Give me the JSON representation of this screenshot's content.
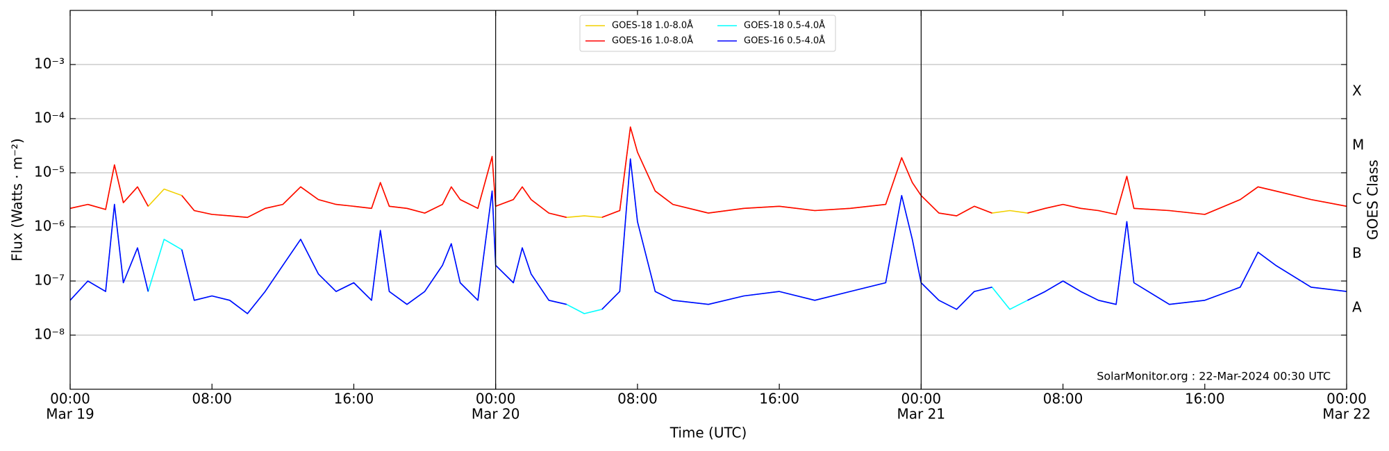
{
  "chart_data": {
    "type": "line",
    "xlabel": "Time (UTC)",
    "ylabel": "Flux (Watts · m⁻²)",
    "y2label": "GOES Class",
    "annotation": "SolarMonitor.org : 22-Mar-2024 00:30 UTC",
    "log_y": true,
    "grid": true,
    "legend": "upper center",
    "xlim": [
      0,
      72
    ],
    "xticks": [
      {
        "value": 0,
        "label": "00:00",
        "sublabel": "Mar 19"
      },
      {
        "value": 8,
        "label": "08:00"
      },
      {
        "value": 16,
        "label": "16:00"
      },
      {
        "value": 24,
        "label": "00:00",
        "sublabel": "Mar 20"
      },
      {
        "value": 32,
        "label": "08:00"
      },
      {
        "value": 40,
        "label": "16:00"
      },
      {
        "value": 48,
        "label": "00:00",
        "sublabel": "Mar 21"
      },
      {
        "value": 56,
        "label": "08:00"
      },
      {
        "value": 64,
        "label": "16:00"
      },
      {
        "value": 72,
        "label": "00:00",
        "sublabel": "Mar 22"
      }
    ],
    "vlines": [
      24,
      48
    ],
    "ylim": [
      1e-09,
      0.01
    ],
    "yticks": [
      {
        "value": 1e-08,
        "label": "10⁻⁸"
      },
      {
        "value": 1e-07,
        "label": "10⁻⁷"
      },
      {
        "value": 1e-06,
        "label": "10⁻⁶"
      },
      {
        "value": 1e-05,
        "label": "10⁻⁵"
      },
      {
        "value": 0.0001,
        "label": "10⁻⁴"
      },
      {
        "value": 0.001,
        "label": "10⁻³"
      }
    ],
    "y2lim": [
      1e-09,
      0.01
    ],
    "y2ticks": [
      {
        "value": 3.16e-08,
        "label": "A"
      },
      {
        "value": 3.16e-07,
        "label": "B"
      },
      {
        "value": 3.16e-06,
        "label": "C"
      },
      {
        "value": 3.16e-05,
        "label": "M"
      },
      {
        "value": 0.000316,
        "label": "X"
      }
    ],
    "x": [
      0,
      1,
      2,
      2.5,
      3,
      3.8,
      4.4,
      5.3,
      6.3,
      7,
      8,
      9,
      10,
      11,
      12,
      13,
      14,
      15,
      16,
      17,
      17.5,
      18,
      19,
      20,
      21,
      21.5,
      22,
      23,
      23.8,
      24,
      25,
      25.5,
      26,
      27,
      28,
      29,
      30,
      31,
      31.6,
      32,
      33,
      34,
      36,
      38,
      40,
      42,
      44,
      46,
      46.9,
      47.5,
      48,
      49,
      50,
      51,
      52,
      53,
      54,
      55,
      56,
      57,
      58,
      59,
      59.6,
      60,
      62,
      64,
      66,
      67,
      68,
      70,
      72
    ],
    "series": [
      {
        "name": "GOES-18 1.0-8.0Å",
        "color": "#f2d000",
        "values": [
          2.2e-06,
          2.6e-06,
          2.1e-06,
          1.4e-05,
          2.8e-06,
          5.5e-06,
          2.4e-06,
          5e-06,
          3.8e-06,
          2e-06,
          1.7e-06,
          1.6e-06,
          1.5e-06,
          2.2e-06,
          2.6e-06,
          5.5e-06,
          3.2e-06,
          2.6e-06,
          2.4e-06,
          2.2e-06,
          6.6e-06,
          2.4e-06,
          2.2e-06,
          1.8e-06,
          2.6e-06,
          5.5e-06,
          3.2e-06,
          2.2e-06,
          2e-05,
          2.4e-06,
          3.2e-06,
          5.5e-06,
          3.2e-06,
          1.8e-06,
          1.5e-06,
          1.6e-06,
          1.5e-06,
          2e-06,
          7e-05,
          2.4e-05,
          4.6e-06,
          2.6e-06,
          1.8e-06,
          2.2e-06,
          2.4e-06,
          2e-06,
          2.2e-06,
          2.6e-06,
          1.9e-05,
          6.6e-06,
          3.8e-06,
          1.8e-06,
          1.6e-06,
          2.4e-06,
          1.8e-06,
          2e-06,
          1.8e-06,
          2.2e-06,
          2.6e-06,
          2.2e-06,
          2e-06,
          1.7e-06,
          8.6e-06,
          2.2e-06,
          2e-06,
          1.7e-06,
          3.2e-06,
          5.5e-06,
          4.6e-06,
          3.2e-06,
          2.4e-06
        ]
      },
      {
        "name": "GOES-16 1.0-8.0Å",
        "color": "#ff0000",
        "values": [
          2.2e-06,
          2.6e-06,
          2.1e-06,
          1.4e-05,
          2.8e-06,
          5.5e-06,
          2.4e-06,
          null,
          3.8e-06,
          2e-06,
          1.7e-06,
          1.6e-06,
          1.5e-06,
          2.2e-06,
          2.6e-06,
          5.5e-06,
          3.2e-06,
          2.6e-06,
          2.4e-06,
          2.2e-06,
          6.6e-06,
          2.4e-06,
          2.2e-06,
          1.8e-06,
          2.6e-06,
          5.5e-06,
          3.2e-06,
          2.2e-06,
          2e-05,
          2.4e-06,
          3.2e-06,
          5.5e-06,
          3.2e-06,
          1.8e-06,
          1.5e-06,
          null,
          1.5e-06,
          2e-06,
          7e-05,
          2.4e-05,
          4.6e-06,
          2.6e-06,
          1.8e-06,
          2.2e-06,
          2.4e-06,
          2e-06,
          2.2e-06,
          2.6e-06,
          1.9e-05,
          6.6e-06,
          3.8e-06,
          1.8e-06,
          1.6e-06,
          2.4e-06,
          1.8e-06,
          null,
          1.8e-06,
          2.2e-06,
          2.6e-06,
          2.2e-06,
          2e-06,
          1.7e-06,
          8.6e-06,
          2.2e-06,
          2e-06,
          1.7e-06,
          3.2e-06,
          5.5e-06,
          4.6e-06,
          3.2e-06,
          2.4e-06
        ]
      },
      {
        "name": "GOES-18 0.5-4.0Å",
        "color": "#00ffff",
        "values": [
          4.4e-08,
          1e-07,
          6.4e-08,
          2.6e-06,
          9.3e-08,
          4.1e-07,
          6.4e-08,
          5.9e-07,
          3.8e-07,
          4.4e-08,
          5.3e-08,
          4.4e-08,
          2.5e-08,
          6.4e-08,
          1.95e-07,
          5.9e-07,
          1.35e-07,
          6.4e-08,
          9.3e-08,
          4.4e-08,
          8.6e-07,
          6.4e-08,
          3.7e-08,
          6.4e-08,
          1.95e-07,
          4.9e-07,
          9.3e-08,
          4.4e-08,
          4.6e-06,
          1.95e-07,
          9.3e-08,
          4.1e-07,
          1.35e-07,
          4.4e-08,
          3.7e-08,
          2.5e-08,
          3e-08,
          6.4e-08,
          1.8e-05,
          1.25e-06,
          6.4e-08,
          4.4e-08,
          3.7e-08,
          5.3e-08,
          6.4e-08,
          4.4e-08,
          6.4e-08,
          9.3e-08,
          3.8e-06,
          5.9e-07,
          9.3e-08,
          4.4e-08,
          3e-08,
          6.4e-08,
          7.7e-08,
          3e-08,
          4.4e-08,
          6.4e-08,
          1e-07,
          6.4e-08,
          4.4e-08,
          3.7e-08,
          1.25e-06,
          9.3e-08,
          3.7e-08,
          4.4e-08,
          7.7e-08,
          3.4e-07,
          1.95e-07,
          7.7e-08,
          6.4e-08
        ]
      },
      {
        "name": "GOES-16 0.5-4.0Å",
        "color": "#0000ff",
        "values": [
          4.4e-08,
          1e-07,
          6.4e-08,
          2.6e-06,
          9.3e-08,
          4.1e-07,
          6.4e-08,
          null,
          3.8e-07,
          4.4e-08,
          5.3e-08,
          4.4e-08,
          2.5e-08,
          6.4e-08,
          1.95e-07,
          5.9e-07,
          1.35e-07,
          6.4e-08,
          9.3e-08,
          4.4e-08,
          8.6e-07,
          6.4e-08,
          3.7e-08,
          6.4e-08,
          1.95e-07,
          4.9e-07,
          9.3e-08,
          4.4e-08,
          4.6e-06,
          1.95e-07,
          9.3e-08,
          4.1e-07,
          1.35e-07,
          4.4e-08,
          3.7e-08,
          null,
          3e-08,
          6.4e-08,
          1.8e-05,
          1.25e-06,
          6.4e-08,
          4.4e-08,
          3.7e-08,
          5.3e-08,
          6.4e-08,
          4.4e-08,
          6.4e-08,
          9.3e-08,
          3.8e-06,
          5.9e-07,
          9.3e-08,
          4.4e-08,
          3e-08,
          6.4e-08,
          7.7e-08,
          null,
          4.4e-08,
          6.4e-08,
          1e-07,
          6.4e-08,
          4.4e-08,
          3.7e-08,
          1.25e-06,
          9.3e-08,
          3.7e-08,
          4.4e-08,
          7.7e-08,
          3.4e-07,
          1.95e-07,
          7.7e-08,
          6.4e-08
        ]
      }
    ]
  }
}
